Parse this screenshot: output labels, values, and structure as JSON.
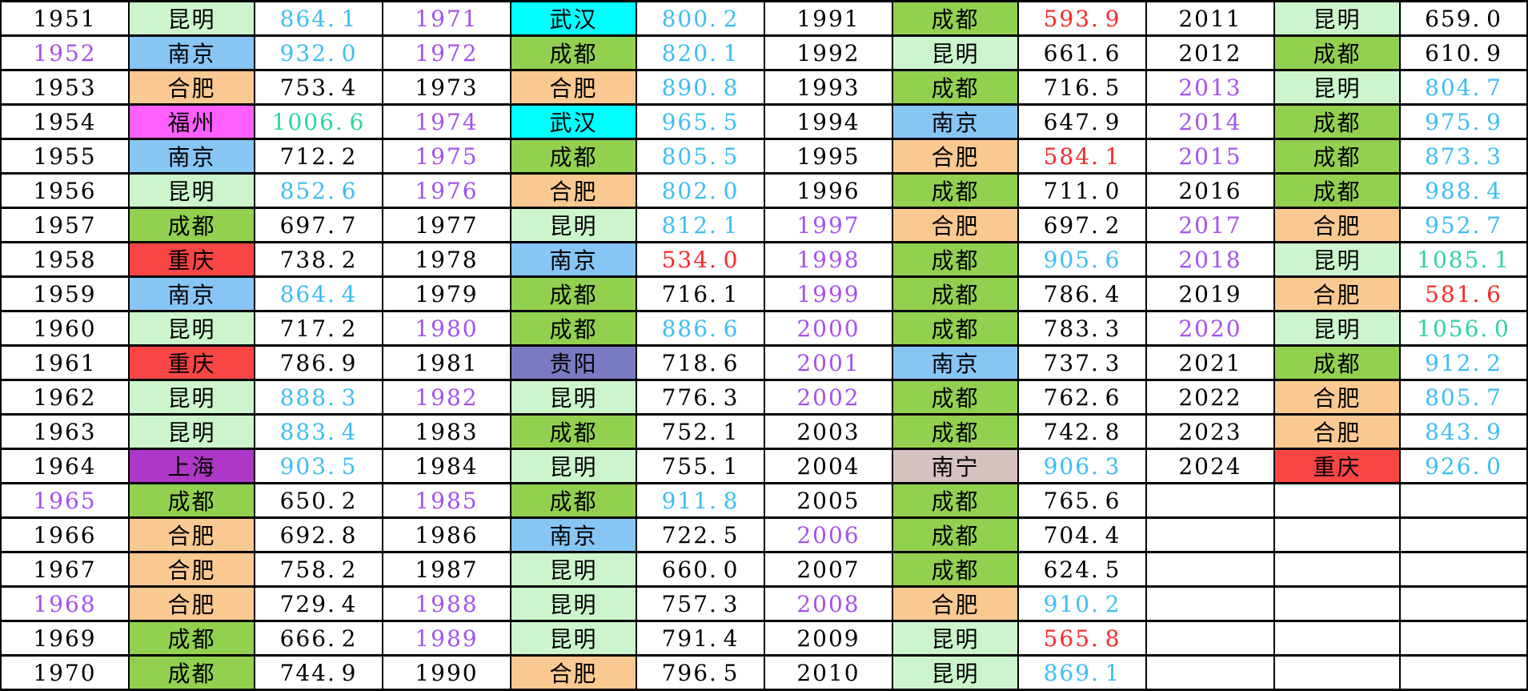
{
  "colors": {
    "page_bg": "#FFFFFF",
    "grid_line": "#000000",
    "year_text_black": "#000000",
    "year_text_purple": "#A551EE",
    "value_text": {
      "black": "#000000",
      "cyan": "#3CBEF2",
      "red": "#FA2828",
      "teal": "#2DD696"
    },
    "city_bg": {
      "昆明": "#CDF5CD",
      "南京": "#87C5F5",
      "合肥": "#FAC891",
      "福州": "#FF5FFF",
      "成都": "#92D050",
      "重庆": "#FA4545",
      "上海": "#AF37C8",
      "贵阳": "#7A7AC3",
      "武汉": "#00FFFF",
      "南宁": "#D7C2C2"
    }
  },
  "city_pinyin": {
    "昆明": "kunming",
    "南京": "nanjing",
    "合肥": "hefei",
    "福州": "fuzhou",
    "成都": "chengdu",
    "重庆": "chongqing",
    "上海": "shanghai",
    "贵阳": "guiyang",
    "武汉": "wuhan",
    "南宁": "nanning"
  },
  "chart_data": {
    "type": "table",
    "title": "",
    "rows_per_group": 20,
    "columns": [
      "year",
      "city",
      "value"
    ],
    "observed_value_color_pattern": {
      "red": "value < 600",
      "black": "600 <= value < 800",
      "cyan": "800 <= value < 1000",
      "teal": "value >= 1000"
    },
    "groups": [
      {
        "years": "1951-1970",
        "rows": [
          {
            "year": "1951",
            "year_color": "black",
            "city": "昆明",
            "value": "864.1",
            "value_color": "cyan"
          },
          {
            "year": "1952",
            "year_color": "purple",
            "city": "南京",
            "value": "932.0",
            "value_color": "cyan"
          },
          {
            "year": "1953",
            "year_color": "black",
            "city": "合肥",
            "value": "753.4",
            "value_color": "black"
          },
          {
            "year": "1954",
            "year_color": "black",
            "city": "福州",
            "value": "1006.6",
            "value_color": "teal"
          },
          {
            "year": "1955",
            "year_color": "black",
            "city": "南京",
            "value": "712.2",
            "value_color": "black"
          },
          {
            "year": "1956",
            "year_color": "black",
            "city": "昆明",
            "value": "852.6",
            "value_color": "cyan"
          },
          {
            "year": "1957",
            "year_color": "black",
            "city": "成都",
            "value": "697.7",
            "value_color": "black"
          },
          {
            "year": "1958",
            "year_color": "black",
            "city": "重庆",
            "value": "738.2",
            "value_color": "black"
          },
          {
            "year": "1959",
            "year_color": "black",
            "city": "南京",
            "value": "864.4",
            "value_color": "cyan"
          },
          {
            "year": "1960",
            "year_color": "black",
            "city": "昆明",
            "value": "717.2",
            "value_color": "black"
          },
          {
            "year": "1961",
            "year_color": "black",
            "city": "重庆",
            "value": "786.9",
            "value_color": "black"
          },
          {
            "year": "1962",
            "year_color": "black",
            "city": "昆明",
            "value": "888.3",
            "value_color": "cyan"
          },
          {
            "year": "1963",
            "year_color": "black",
            "city": "昆明",
            "value": "883.4",
            "value_color": "cyan"
          },
          {
            "year": "1964",
            "year_color": "black",
            "city": "上海",
            "value": "903.5",
            "value_color": "cyan"
          },
          {
            "year": "1965",
            "year_color": "purple",
            "city": "成都",
            "value": "650.2",
            "value_color": "black"
          },
          {
            "year": "1966",
            "year_color": "black",
            "city": "合肥",
            "value": "692.8",
            "value_color": "black"
          },
          {
            "year": "1967",
            "year_color": "black",
            "city": "合肥",
            "value": "758.2",
            "value_color": "black"
          },
          {
            "year": "1968",
            "year_color": "purple",
            "city": "合肥",
            "value": "729.4",
            "value_color": "black"
          },
          {
            "year": "1969",
            "year_color": "black",
            "city": "成都",
            "value": "666.2",
            "value_color": "black"
          },
          {
            "year": "1970",
            "year_color": "black",
            "city": "成都",
            "value": "744.9",
            "value_color": "black"
          }
        ]
      },
      {
        "years": "1971-1990",
        "rows": [
          {
            "year": "1971",
            "year_color": "purple",
            "city": "武汉",
            "value": "800.2",
            "value_color": "cyan"
          },
          {
            "year": "1972",
            "year_color": "purple",
            "city": "成都",
            "value": "820.1",
            "value_color": "cyan"
          },
          {
            "year": "1973",
            "year_color": "black",
            "city": "合肥",
            "value": "890.8",
            "value_color": "cyan"
          },
          {
            "year": "1974",
            "year_color": "purple",
            "city": "武汉",
            "value": "965.5",
            "value_color": "cyan"
          },
          {
            "year": "1975",
            "year_color": "purple",
            "city": "成都",
            "value": "805.5",
            "value_color": "cyan"
          },
          {
            "year": "1976",
            "year_color": "purple",
            "city": "合肥",
            "value": "802.0",
            "value_color": "cyan"
          },
          {
            "year": "1977",
            "year_color": "black",
            "city": "昆明",
            "value": "812.1",
            "value_color": "cyan"
          },
          {
            "year": "1978",
            "year_color": "black",
            "city": "南京",
            "value": "534.0",
            "value_color": "red"
          },
          {
            "year": "1979",
            "year_color": "black",
            "city": "成都",
            "value": "716.1",
            "value_color": "black"
          },
          {
            "year": "1980",
            "year_color": "purple",
            "city": "成都",
            "value": "886.6",
            "value_color": "cyan"
          },
          {
            "year": "1981",
            "year_color": "black",
            "city": "贵阳",
            "value": "718.6",
            "value_color": "black"
          },
          {
            "year": "1982",
            "year_color": "purple",
            "city": "昆明",
            "value": "776.3",
            "value_color": "black"
          },
          {
            "year": "1983",
            "year_color": "black",
            "city": "成都",
            "value": "752.1",
            "value_color": "black"
          },
          {
            "year": "1984",
            "year_color": "black",
            "city": "昆明",
            "value": "755.1",
            "value_color": "black"
          },
          {
            "year": "1985",
            "year_color": "purple",
            "city": "成都",
            "value": "911.8",
            "value_color": "cyan"
          },
          {
            "year": "1986",
            "year_color": "black",
            "city": "南京",
            "value": "722.5",
            "value_color": "black"
          },
          {
            "year": "1987",
            "year_color": "black",
            "city": "昆明",
            "value": "660.0",
            "value_color": "black"
          },
          {
            "year": "1988",
            "year_color": "purple",
            "city": "昆明",
            "value": "757.3",
            "value_color": "black"
          },
          {
            "year": "1989",
            "year_color": "purple",
            "city": "昆明",
            "value": "791.4",
            "value_color": "black"
          },
          {
            "year": "1990",
            "year_color": "black",
            "city": "合肥",
            "value": "796.5",
            "value_color": "black"
          }
        ]
      },
      {
        "years": "1991-2010",
        "rows": [
          {
            "year": "1991",
            "year_color": "black",
            "city": "成都",
            "value": "593.9",
            "value_color": "red"
          },
          {
            "year": "1992",
            "year_color": "black",
            "city": "昆明",
            "value": "661.6",
            "value_color": "black"
          },
          {
            "year": "1993",
            "year_color": "black",
            "city": "成都",
            "value": "716.5",
            "value_color": "black"
          },
          {
            "year": "1994",
            "year_color": "black",
            "city": "南京",
            "value": "647.9",
            "value_color": "black"
          },
          {
            "year": "1995",
            "year_color": "black",
            "city": "合肥",
            "value": "584.1",
            "value_color": "red"
          },
          {
            "year": "1996",
            "year_color": "black",
            "city": "成都",
            "value": "711.0",
            "value_color": "black"
          },
          {
            "year": "1997",
            "year_color": "purple",
            "city": "合肥",
            "value": "697.2",
            "value_color": "black"
          },
          {
            "year": "1998",
            "year_color": "purple",
            "city": "成都",
            "value": "905.6",
            "value_color": "cyan"
          },
          {
            "year": "1999",
            "year_color": "purple",
            "city": "成都",
            "value": "786.4",
            "value_color": "black"
          },
          {
            "year": "2000",
            "year_color": "purple",
            "city": "成都",
            "value": "783.3",
            "value_color": "black"
          },
          {
            "year": "2001",
            "year_color": "purple",
            "city": "南京",
            "value": "737.3",
            "value_color": "black"
          },
          {
            "year": "2002",
            "year_color": "purple",
            "city": "成都",
            "value": "762.6",
            "value_color": "black"
          },
          {
            "year": "2003",
            "year_color": "black",
            "city": "成都",
            "value": "742.8",
            "value_color": "black"
          },
          {
            "year": "2004",
            "year_color": "black",
            "city": "南宁",
            "value": "906.3",
            "value_color": "cyan"
          },
          {
            "year": "2005",
            "year_color": "black",
            "city": "成都",
            "value": "765.6",
            "value_color": "black"
          },
          {
            "year": "2006",
            "year_color": "purple",
            "city": "成都",
            "value": "704.4",
            "value_color": "black"
          },
          {
            "year": "2007",
            "year_color": "black",
            "city": "成都",
            "value": "624.5",
            "value_color": "black"
          },
          {
            "year": "2008",
            "year_color": "purple",
            "city": "合肥",
            "value": "910.2",
            "value_color": "cyan"
          },
          {
            "year": "2009",
            "year_color": "black",
            "city": "昆明",
            "value": "565.8",
            "value_color": "red"
          },
          {
            "year": "2010",
            "year_color": "black",
            "city": "昆明",
            "value": "869.1",
            "value_color": "cyan"
          }
        ]
      },
      {
        "years": "2011-2024",
        "rows": [
          {
            "year": "2011",
            "year_color": "black",
            "city": "昆明",
            "value": "659.0",
            "value_color": "black"
          },
          {
            "year": "2012",
            "year_color": "black",
            "city": "成都",
            "value": "610.9",
            "value_color": "black"
          },
          {
            "year": "2013",
            "year_color": "purple",
            "city": "昆明",
            "value": "804.7",
            "value_color": "cyan"
          },
          {
            "year": "2014",
            "year_color": "purple",
            "city": "成都",
            "value": "975.9",
            "value_color": "cyan"
          },
          {
            "year": "2015",
            "year_color": "purple",
            "city": "成都",
            "value": "873.3",
            "value_color": "cyan"
          },
          {
            "year": "2016",
            "year_color": "black",
            "city": "成都",
            "value": "988.4",
            "value_color": "cyan"
          },
          {
            "year": "2017",
            "year_color": "purple",
            "city": "合肥",
            "value": "952.7",
            "value_color": "cyan"
          },
          {
            "year": "2018",
            "year_color": "purple",
            "city": "昆明",
            "value": "1085.1",
            "value_color": "teal"
          },
          {
            "year": "2019",
            "year_color": "black",
            "city": "合肥",
            "value": "581.6",
            "value_color": "red"
          },
          {
            "year": "2020",
            "year_color": "purple",
            "city": "昆明",
            "value": "1056.0",
            "value_color": "teal"
          },
          {
            "year": "2021",
            "year_color": "black",
            "city": "成都",
            "value": "912.2",
            "value_color": "cyan"
          },
          {
            "year": "2022",
            "year_color": "black",
            "city": "合肥",
            "value": "805.7",
            "value_color": "cyan"
          },
          {
            "year": "2023",
            "year_color": "black",
            "city": "合肥",
            "value": "843.9",
            "value_color": "cyan"
          },
          {
            "year": "2024",
            "year_color": "black",
            "city": "重庆",
            "value": "926.0",
            "value_color": "cyan"
          },
          {
            "year": "",
            "year_color": "black",
            "city": "",
            "value": "",
            "value_color": "black"
          },
          {
            "year": "",
            "year_color": "black",
            "city": "",
            "value": "",
            "value_color": "black"
          },
          {
            "year": "",
            "year_color": "black",
            "city": "",
            "value": "",
            "value_color": "black"
          },
          {
            "year": "",
            "year_color": "black",
            "city": "",
            "value": "",
            "value_color": "black"
          },
          {
            "year": "",
            "year_color": "black",
            "city": "",
            "value": "",
            "value_color": "black"
          },
          {
            "year": "",
            "year_color": "black",
            "city": "",
            "value": "",
            "value_color": "black"
          }
        ]
      }
    ]
  }
}
